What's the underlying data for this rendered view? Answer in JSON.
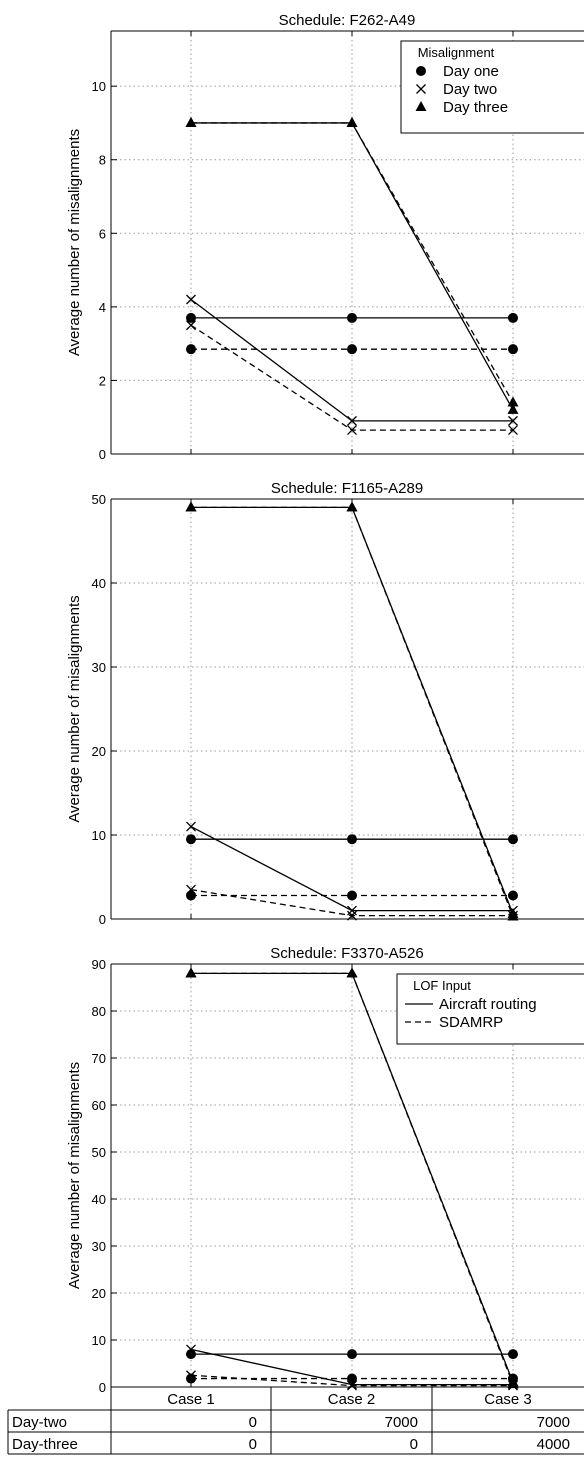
{
  "chart_data": [
    {
      "type": "line",
      "title": "Schedule: F262-A49",
      "ylabel": "Average number of misalignments",
      "categories": [
        "Case 1",
        "Case 2",
        "Case 3"
      ],
      "ylim": [
        0,
        11.5
      ],
      "yticks": [
        0,
        2,
        4,
        6,
        8,
        10
      ],
      "grid": true,
      "legend": {
        "title": "Misalignment",
        "placement": "top-right",
        "entries": [
          {
            "marker": "circle",
            "label": "Day one"
          },
          {
            "marker": "x",
            "label": "Day two"
          },
          {
            "marker": "triangle",
            "label": "Day three"
          }
        ]
      },
      "series": [
        {
          "misalignment": "Day one",
          "lof_input": "Aircraft routing",
          "values": [
            3.7,
            3.7,
            3.7
          ]
        },
        {
          "misalignment": "Day one",
          "lof_input": "SDAMRP",
          "values": [
            2.85,
            2.85,
            2.85
          ]
        },
        {
          "misalignment": "Day two",
          "lof_input": "Aircraft routing",
          "values": [
            4.2,
            0.9,
            0.9
          ]
        },
        {
          "misalignment": "Day two",
          "lof_input": "SDAMRP",
          "values": [
            3.5,
            0.65,
            0.65
          ]
        },
        {
          "misalignment": "Day three",
          "lof_input": "Aircraft routing",
          "values": [
            9.0,
            9.0,
            1.2
          ]
        },
        {
          "misalignment": "Day three",
          "lof_input": "SDAMRP",
          "values": [
            9.0,
            9.0,
            1.4
          ]
        }
      ]
    },
    {
      "type": "line",
      "title": "Schedule: F1165-A289",
      "ylabel": "Average number of misalignments",
      "categories": [
        "Case 1",
        "Case 2",
        "Case 3"
      ],
      "ylim": [
        0,
        50
      ],
      "yticks": [
        0,
        10,
        20,
        30,
        40,
        50
      ],
      "grid": true,
      "series": [
        {
          "misalignment": "Day one",
          "lof_input": "Aircraft routing",
          "values": [
            9.5,
            9.5,
            9.5
          ]
        },
        {
          "misalignment": "Day one",
          "lof_input": "SDAMRP",
          "values": [
            2.8,
            2.8,
            2.8
          ]
        },
        {
          "misalignment": "Day two",
          "lof_input": "Aircraft routing",
          "values": [
            11.0,
            1.0,
            1.0
          ]
        },
        {
          "misalignment": "Day two",
          "lof_input": "SDAMRP",
          "values": [
            3.5,
            0.4,
            0.4
          ]
        },
        {
          "misalignment": "Day three",
          "lof_input": "Aircraft routing",
          "values": [
            49.0,
            49.0,
            0.6
          ]
        },
        {
          "misalignment": "Day three",
          "lof_input": "SDAMRP",
          "values": [
            49.0,
            49.0,
            0.3
          ]
        }
      ]
    },
    {
      "type": "line",
      "title": "Schedule: F3370-A526",
      "ylabel": "Average number of misalignments",
      "categories": [
        "Case 1",
        "Case 2",
        "Case 3"
      ],
      "ylim": [
        0,
        90
      ],
      "yticks": [
        0,
        10,
        20,
        30,
        40,
        50,
        60,
        70,
        80,
        90
      ],
      "grid": true,
      "legend": {
        "title": "LOF Input",
        "placement": "top-right",
        "entries": [
          {
            "style": "solid",
            "label": "Aircraft routing"
          },
          {
            "style": "dashed",
            "label": "SDAMRP"
          }
        ]
      },
      "series": [
        {
          "misalignment": "Day one",
          "lof_input": "Aircraft routing",
          "values": [
            7.0,
            7.0,
            7.0
          ]
        },
        {
          "misalignment": "Day one",
          "lof_input": "SDAMRP",
          "values": [
            1.8,
            1.8,
            1.8
          ]
        },
        {
          "misalignment": "Day two",
          "lof_input": "Aircraft routing",
          "values": [
            8.0,
            0.5,
            0.5
          ]
        },
        {
          "misalignment": "Day two",
          "lof_input": "SDAMRP",
          "values": [
            2.5,
            0.3,
            0.3
          ]
        },
        {
          "misalignment": "Day three",
          "lof_input": "Aircraft routing",
          "values": [
            88.0,
            88.0,
            1.0
          ]
        },
        {
          "misalignment": "Day three",
          "lof_input": "SDAMRP",
          "values": [
            88.0,
            88.0,
            0.6
          ]
        }
      ]
    }
  ],
  "case_table": {
    "header": [
      "",
      "Case 1",
      "Case 2",
      "Case 3"
    ],
    "rows": [
      {
        "label": "Day-two",
        "values": [
          "0",
          "7000",
          "7000"
        ]
      },
      {
        "label": "Day-three",
        "values": [
          "0",
          "0",
          "4000"
        ]
      }
    ]
  }
}
